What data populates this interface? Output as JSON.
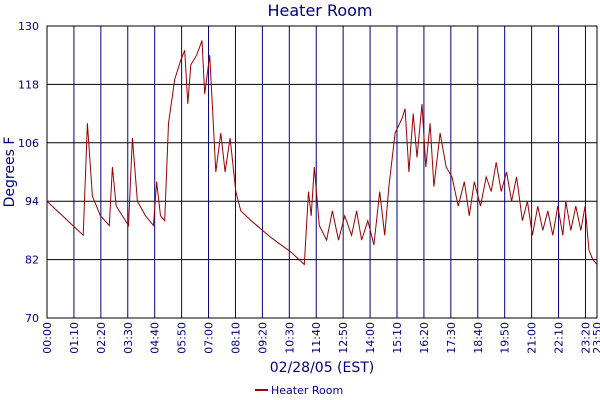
{
  "chart_data": {
    "type": "line",
    "title": "Heater Room",
    "xlabel": "02/28/05 (EST)",
    "ylabel": "Degrees F",
    "x": [
      "00:00",
      "01:34",
      "01:45",
      "01:58",
      "02:19",
      "02:42",
      "02:50",
      "03:00",
      "03:32",
      "03:42",
      "03:55",
      "04:16",
      "04:37",
      "04:45",
      "04:55",
      "05:06",
      "05:16",
      "05:32",
      "05:48",
      "05:58",
      "06:06",
      "06:14",
      "06:29",
      "06:43",
      "06:50",
      "06:58",
      "07:03",
      "07:11",
      "07:19",
      "07:32",
      "07:43",
      "07:56",
      "08:11",
      "08:24",
      "08:51",
      "09:43",
      "10:35",
      "11:09",
      "11:20",
      "11:27",
      "11:35",
      "11:48",
      "12:07",
      "12:22",
      "12:38",
      "12:54",
      "13:12",
      "13:25",
      "13:38",
      "13:54",
      "14:10",
      "14:25",
      "14:38",
      "14:49",
      "15:05",
      "15:23",
      "15:31",
      "15:41",
      "15:52",
      "16:02",
      "16:15",
      "16:25",
      "16:36",
      "16:46",
      "17:02",
      "17:18",
      "17:33",
      "17:49",
      "18:05",
      "18:18",
      "18:31",
      "18:47",
      "19:02",
      "19:15",
      "19:28",
      "19:41",
      "19:55",
      "20:08",
      "20:21",
      "20:36",
      "20:49",
      "21:02",
      "21:16",
      "21:29",
      "21:42",
      "21:55",
      "22:08",
      "22:21",
      "22:29",
      "22:42",
      "22:55",
      "23:08",
      "23:19",
      "23:29",
      "23:39",
      "23:50"
    ],
    "series": [
      {
        "name": "Heater Room",
        "color": "#990000",
        "values": [
          94,
          87,
          110,
          95,
          91,
          89,
          101,
          93,
          89,
          107,
          94,
          91,
          89,
          98,
          91,
          90,
          110,
          119,
          123,
          125,
          114,
          122,
          124,
          127,
          116,
          121,
          124,
          112,
          100,
          108,
          100,
          107,
          96,
          92,
          90,
          86.5,
          83.5,
          81,
          96,
          91,
          101,
          89,
          86,
          92,
          86,
          91,
          87,
          92,
          86,
          90,
          85,
          96,
          87,
          97,
          108,
          111,
          113,
          100,
          112,
          103,
          114,
          101,
          110,
          97,
          108,
          101,
          99,
          93,
          98,
          91,
          98,
          93,
          99,
          96,
          102,
          96,
          100,
          94,
          99,
          90,
          94,
          87,
          93,
          88,
          92,
          87,
          93,
          87,
          94,
          88,
          93,
          88,
          93,
          84,
          82,
          81
        ]
      }
    ],
    "xlim": [
      "00:00",
      "23:50"
    ],
    "xticks": [
      "00:00",
      "01:10",
      "02:20",
      "03:30",
      "04:40",
      "05:50",
      "07:00",
      "08:10",
      "09:20",
      "10:30",
      "11:40",
      "12:50",
      "14:00",
      "15:10",
      "16:20",
      "17:30",
      "18:40",
      "19:50",
      "21:00",
      "22:10",
      "23:20",
      "23:50"
    ],
    "ylim": [
      70,
      130
    ],
    "yticks": [
      70,
      82,
      94,
      106,
      118,
      130
    ],
    "grid": true,
    "legend": "bottom"
  }
}
